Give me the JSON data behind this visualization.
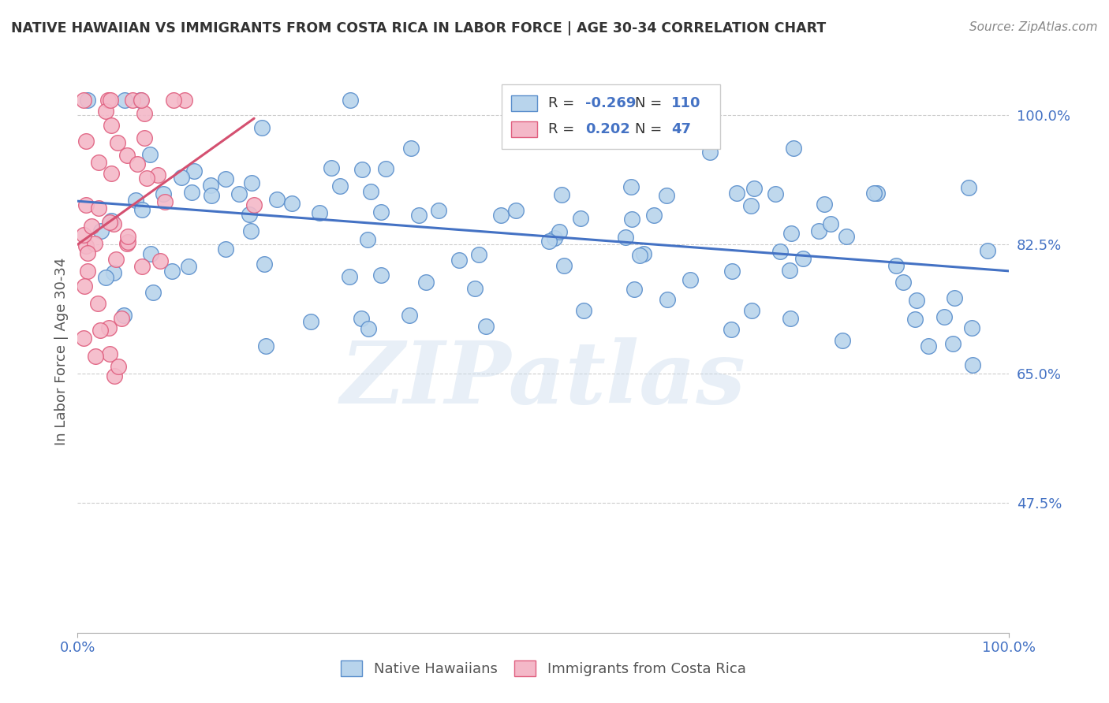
{
  "title": "NATIVE HAWAIIAN VS IMMIGRANTS FROM COSTA RICA IN LABOR FORCE | AGE 30-34 CORRELATION CHART",
  "source": "Source: ZipAtlas.com",
  "ylabel": "In Labor Force | Age 30-34",
  "xlim": [
    0.0,
    1.0
  ],
  "ylim": [
    0.3,
    1.06
  ],
  "yticks": [
    0.475,
    0.65,
    0.825,
    1.0
  ],
  "ytick_labels": [
    "47.5%",
    "65.0%",
    "82.5%",
    "100.0%"
  ],
  "xtick_labels": [
    "0.0%",
    "100.0%"
  ],
  "xticks": [
    0.0,
    1.0
  ],
  "blue_R": -0.269,
  "blue_N": 110,
  "pink_R": 0.202,
  "pink_N": 47,
  "blue_color": "#b8d4ec",
  "pink_color": "#f4b8c8",
  "blue_edge_color": "#5b8fcc",
  "pink_edge_color": "#e06080",
  "blue_line_color": "#4472c4",
  "pink_line_color": "#d45070",
  "legend_blue_label": "Native Hawaiians",
  "legend_pink_label": "Immigrants from Costa Rica",
  "watermark_text": "ZIPatlas",
  "background_color": "#ffffff",
  "grid_color": "#cccccc",
  "title_color": "#333333",
  "axis_label_color": "#555555",
  "tick_color": "#4472c4",
  "source_color": "#888888"
}
